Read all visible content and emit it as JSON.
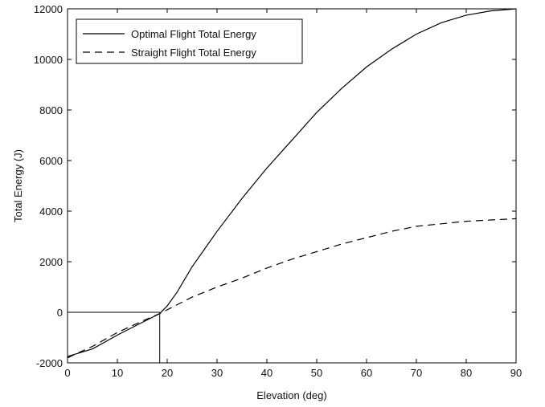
{
  "chart_data": {
    "type": "line",
    "title": "",
    "xlabel": "Elevation (deg)",
    "ylabel": "Total Energy (J)",
    "xlim": [
      0,
      90
    ],
    "ylim": [
      -2000,
      12000
    ],
    "xticks": [
      "0",
      "10",
      "20",
      "30",
      "40",
      "50",
      "60",
      "70",
      "80",
      "90"
    ],
    "yticks": [
      "-2000",
      "0",
      "2000",
      "4000",
      "6000",
      "8000",
      "10000",
      "12000"
    ],
    "grid": false,
    "legend_position": "top-left",
    "series": [
      {
        "name": "Optimal Flight Total Energy",
        "style": "solid",
        "color": "#000000",
        "x": [
          0,
          5,
          10,
          15,
          18.5,
          20,
          22,
          25,
          30,
          35,
          40,
          45,
          50,
          55,
          60,
          65,
          70,
          75,
          80,
          85,
          90
        ],
        "y": [
          -1750,
          -1450,
          -900,
          -400,
          -50,
          250,
          800,
          1800,
          3200,
          4500,
          5700,
          6800,
          7900,
          8850,
          9700,
          10400,
          11000,
          11450,
          11750,
          11920,
          12000
        ]
      },
      {
        "name": "Straight Flight Total Energy",
        "style": "dashed",
        "color": "#000000",
        "x": [
          0,
          5,
          10,
          15,
          18.5,
          20,
          25,
          30,
          35,
          40,
          45,
          50,
          55,
          60,
          65,
          70,
          75,
          80,
          85,
          90
        ],
        "y": [
          -1800,
          -1350,
          -800,
          -350,
          -50,
          100,
          600,
          1000,
          1350,
          1750,
          2100,
          2400,
          2700,
          2950,
          3200,
          3400,
          3500,
          3600,
          3650,
          3700
        ]
      }
    ],
    "reference_lines": [
      {
        "type": "horizontal",
        "y": 0,
        "x_from": 0,
        "x_to": 18.5
      },
      {
        "type": "vertical",
        "x": 18.5,
        "y_from": -2000,
        "y_to": 0
      }
    ]
  }
}
